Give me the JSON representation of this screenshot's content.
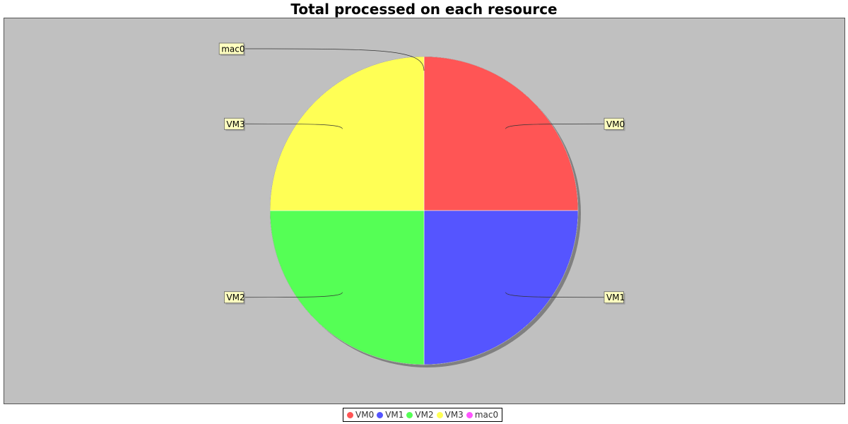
{
  "chart_data": {
    "type": "pie",
    "title": "Total processed on each resource",
    "slices": [
      {
        "label": "VM0",
        "value": 25,
        "color": "#ff5555"
      },
      {
        "label": "VM1",
        "value": 25,
        "color": "#5555ff"
      },
      {
        "label": "VM2",
        "value": 25,
        "color": "#55ff55"
      },
      {
        "label": "VM3",
        "value": 25,
        "color": "#ffff55"
      },
      {
        "label": "mac0",
        "value": 0,
        "color": "#ff55ff"
      }
    ],
    "legend_position": "bottom",
    "background": "#c0c0c0"
  }
}
